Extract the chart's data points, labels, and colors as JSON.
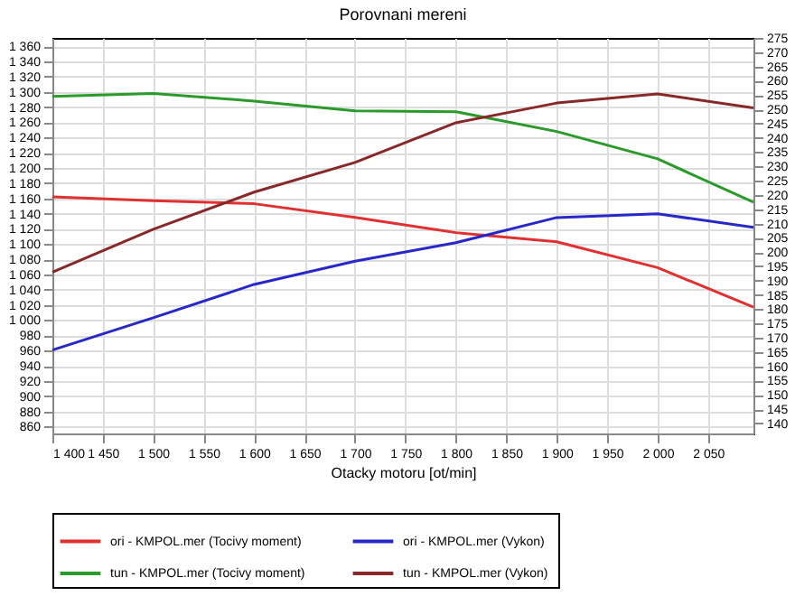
{
  "chart_data": {
    "type": "line",
    "title": "Porovnani mereni",
    "xlabel": "Otacky motoru [ot/min]",
    "xlim": [
      1400,
      2095
    ],
    "xticks": [
      {
        "value": 1400,
        "label": "1 400"
      },
      {
        "value": 1450,
        "label": "1 450"
      },
      {
        "value": 1500,
        "label": "1 500"
      },
      {
        "value": 1550,
        "label": "1 550"
      },
      {
        "value": 1600,
        "label": "1 600"
      },
      {
        "value": 1650,
        "label": "1 650"
      },
      {
        "value": 1700,
        "label": "1 700"
      },
      {
        "value": 1750,
        "label": "1 750"
      },
      {
        "value": 1800,
        "label": "1 800"
      },
      {
        "value": 1850,
        "label": "1 850"
      },
      {
        "value": 1900,
        "label": "1 900"
      },
      {
        "value": 1950,
        "label": "1 950"
      },
      {
        "value": 2000,
        "label": "2 000"
      },
      {
        "value": 2050,
        "label": "2 050"
      }
    ],
    "ylim": [
      851,
      1371
    ],
    "yticks": [
      {
        "value": 860,
        "label": "860"
      },
      {
        "value": 880,
        "label": "880"
      },
      {
        "value": 900,
        "label": "900"
      },
      {
        "value": 920,
        "label": "920"
      },
      {
        "value": 940,
        "label": "940"
      },
      {
        "value": 960,
        "label": "960"
      },
      {
        "value": 980,
        "label": "980"
      },
      {
        "value": 1000,
        "label": "1 000"
      },
      {
        "value": 1020,
        "label": "1 020"
      },
      {
        "value": 1040,
        "label": "1 040"
      },
      {
        "value": 1060,
        "label": "1 060"
      },
      {
        "value": 1080,
        "label": "1 080"
      },
      {
        "value": 1100,
        "label": "1 100"
      },
      {
        "value": 1120,
        "label": "1 120"
      },
      {
        "value": 1140,
        "label": "1 140"
      },
      {
        "value": 1160,
        "label": "1 160"
      },
      {
        "value": 1180,
        "label": "1 180"
      },
      {
        "value": 1200,
        "label": "1 200"
      },
      {
        "value": 1220,
        "label": "1 220"
      },
      {
        "value": 1240,
        "label": "1 240"
      },
      {
        "value": 1260,
        "label": "1 260"
      },
      {
        "value": 1280,
        "label": "1 280"
      },
      {
        "value": 1300,
        "label": "1 300"
      },
      {
        "value": 1320,
        "label": "1 320"
      },
      {
        "value": 1340,
        "label": "1 340"
      },
      {
        "value": 1360,
        "label": "1 360"
      }
    ],
    "y2lim": [
      136.5,
      275
    ],
    "y2ticks": [
      140,
      145,
      150,
      155,
      160,
      165,
      170,
      175,
      180,
      185,
      190,
      195,
      200,
      205,
      210,
      215,
      220,
      225,
      230,
      235,
      240,
      245,
      250,
      255,
      260,
      265,
      270,
      275
    ],
    "x": [
      1400,
      1500,
      1600,
      1700,
      1800,
      1900,
      2000,
      2095
    ],
    "series": [
      {
        "name": "ori - KMPOL.mer  (Tocivy moment)",
        "color": "#e03030",
        "values": [
          1162,
          1157,
          1153,
          1135,
          1115,
          1103,
          1069,
          1017
        ]
      },
      {
        "name": "ori - KMPOL.mer  (Vykon)",
        "color": "#2828c8",
        "axis": "y2",
        "values": [
          165.7,
          177.0,
          188.7,
          196.8,
          203.3,
          212.1,
          213.4,
          208.7
        ]
      },
      {
        "name": "tun - KMPOL.mer  (Tocivy moment)",
        "color": "#2a9a2a",
        "values": [
          1294,
          1298,
          1288,
          1275,
          1274,
          1248,
          1212,
          1155
        ]
      },
      {
        "name": "tun - KMPOL.mer  (Vykon)",
        "color": "#882828",
        "axis": "y2",
        "values": [
          193.0,
          208.0,
          221.0,
          231.4,
          245.3,
          252.2,
          255.4,
          250.5
        ]
      }
    ],
    "grid": true,
    "legend": "bottom",
    "marker": "none",
    "line_style": "solid"
  }
}
